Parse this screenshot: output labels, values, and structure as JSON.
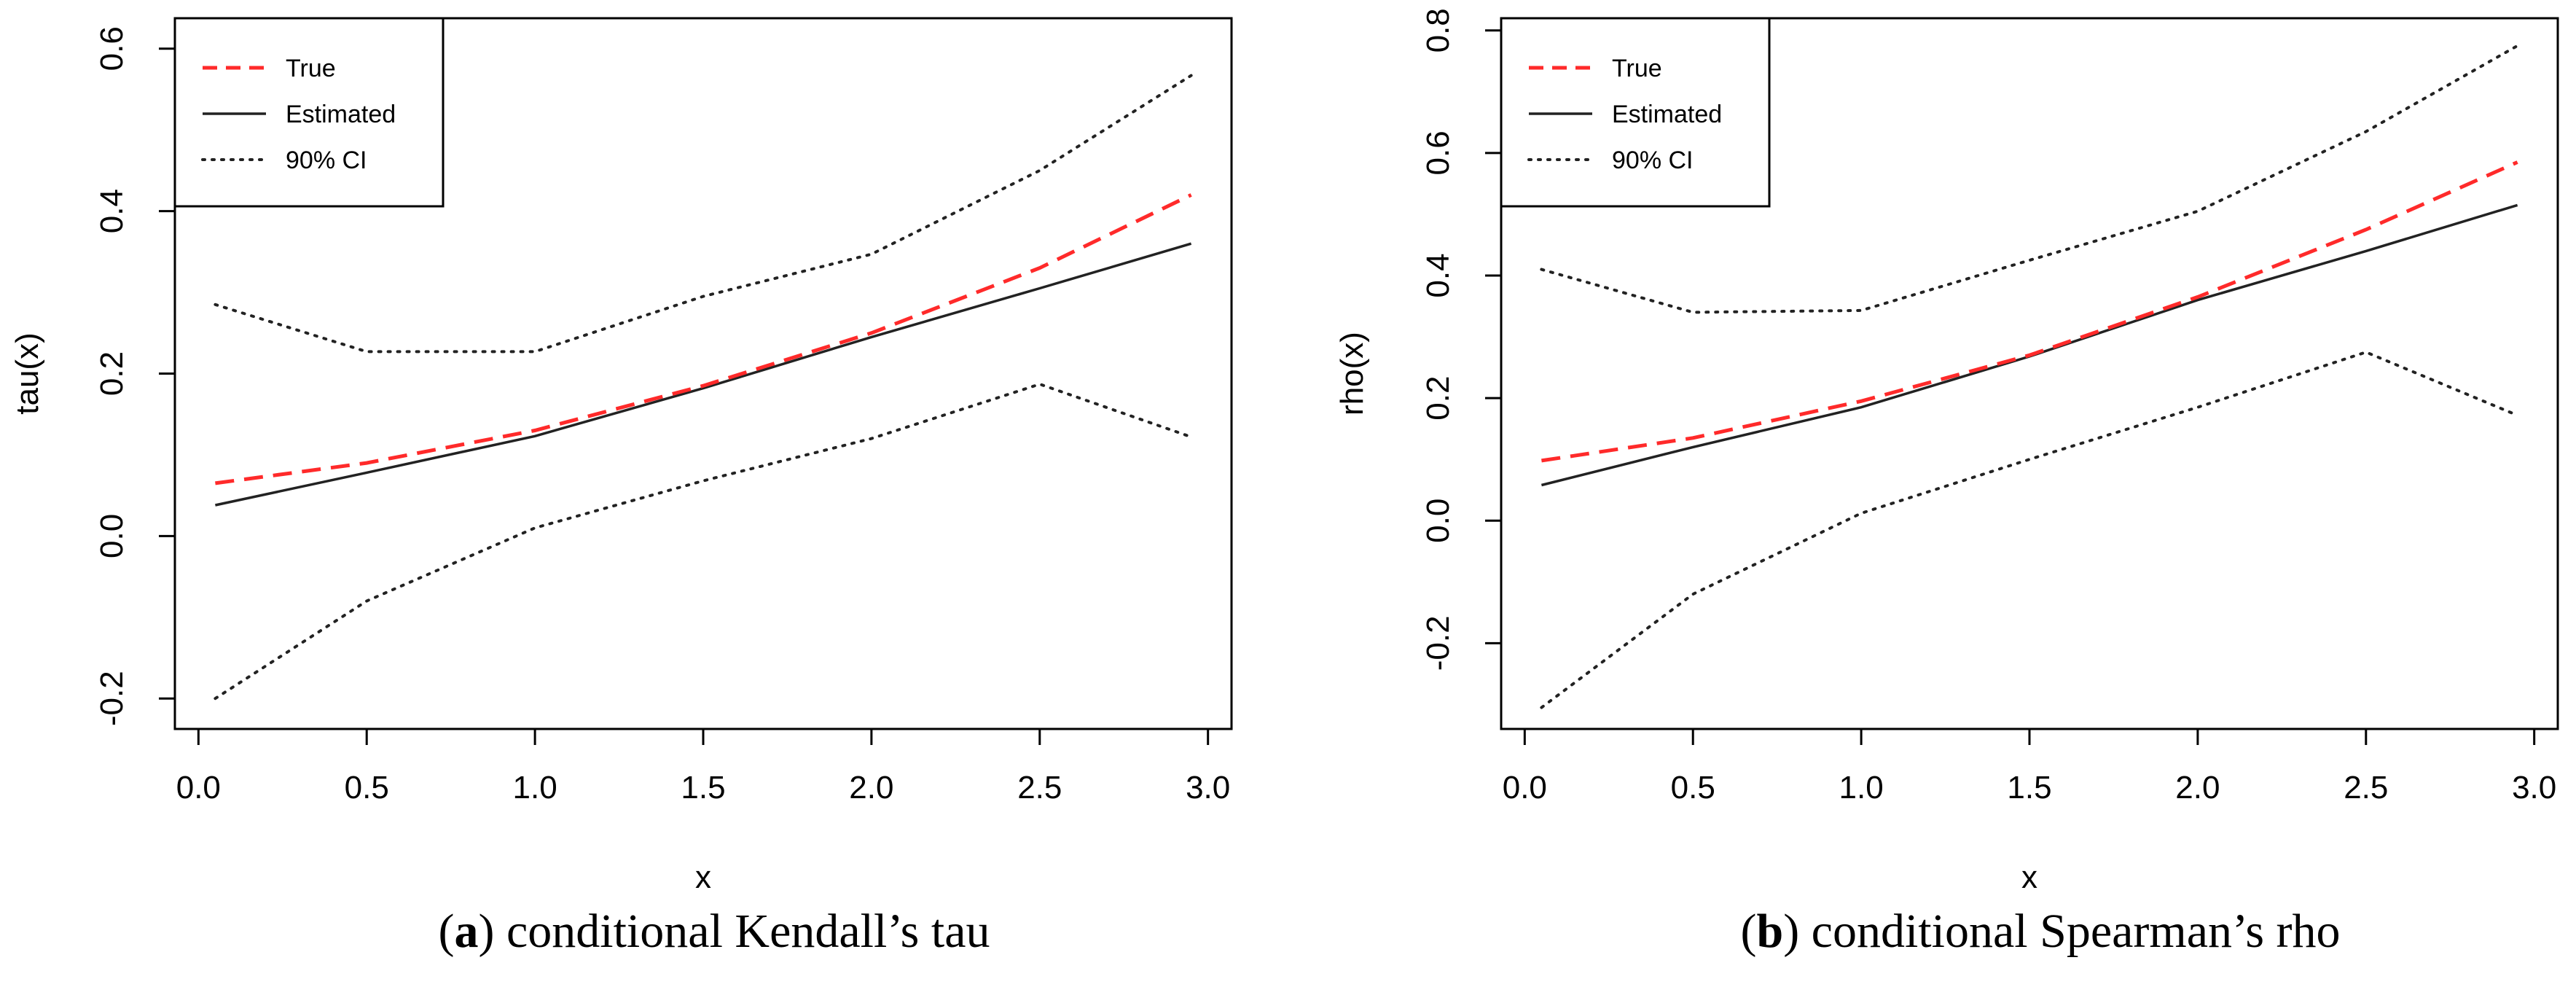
{
  "figure": {
    "panels": [
      {
        "caption_letter": "a",
        "caption_text": "conditional Kendall’s tau"
      },
      {
        "caption_letter": "b",
        "caption_text": "conditional Spearman’s rho"
      }
    ]
  },
  "chart_data": [
    {
      "type": "line",
      "title": "",
      "xlabel": "x",
      "ylabel": "tau(x)",
      "xlim": [
        0.0,
        3.0
      ],
      "ylim": [
        -0.2,
        0.6
      ],
      "xticks": [
        0.0,
        0.5,
        1.0,
        1.5,
        2.0,
        2.5,
        3.0
      ],
      "xtick_labels": [
        "0.0",
        "0.5",
        "1.0",
        "1.5",
        "2.0",
        "2.5",
        "3.0"
      ],
      "yticks": [
        -0.2,
        0.0,
        0.2,
        0.4,
        0.6
      ],
      "ytick_labels": [
        "-0.2",
        "0.0",
        "0.2",
        "0.4",
        "0.6"
      ],
      "legend_position": "top-left",
      "series": [
        {
          "name": "True",
          "style": "dashed",
          "color": "#ff2a2a",
          "x": [
            0.05,
            0.5,
            1.0,
            1.5,
            2.0,
            2.5,
            2.95
          ],
          "values": [
            0.065,
            0.09,
            0.13,
            0.185,
            0.25,
            0.33,
            0.42
          ]
        },
        {
          "name": "Estimated",
          "style": "solid",
          "color": "#222222",
          "x": [
            0.05,
            0.5,
            1.0,
            1.5,
            2.0,
            2.5,
            2.95
          ],
          "values": [
            0.038,
            0.078,
            0.123,
            0.182,
            0.245,
            0.305,
            0.36
          ]
        },
        {
          "name": "90% CI",
          "style": "dotted",
          "color": "#222222",
          "x": [
            0.05,
            0.5,
            1.0,
            1.5,
            2.0,
            2.5,
            2.95
          ],
          "values": [
            0.285,
            0.227,
            0.227,
            0.295,
            0.347,
            0.45,
            0.567
          ]
        },
        {
          "name": "90% CI (lower)",
          "style": "dotted",
          "color": "#222222",
          "legend": false,
          "x": [
            0.05,
            0.5,
            1.0,
            1.5,
            2.0,
            2.5,
            2.95
          ],
          "values": [
            -0.2,
            -0.08,
            0.01,
            0.068,
            0.12,
            0.187,
            0.122
          ]
        }
      ]
    },
    {
      "type": "line",
      "title": "",
      "xlabel": "x",
      "ylabel": "rho(x)",
      "xlim": [
        0.0,
        3.0
      ],
      "ylim": [
        -0.3,
        0.8
      ],
      "xticks": [
        0.0,
        0.5,
        1.0,
        1.5,
        2.0,
        2.5,
        3.0
      ],
      "xtick_labels": [
        "0.0",
        "0.5",
        "1.0",
        "1.5",
        "2.0",
        "2.5",
        "3.0"
      ],
      "yticks": [
        -0.2,
        0.0,
        0.2,
        0.4,
        0.6,
        0.8
      ],
      "ytick_labels": [
        "-0.2",
        "0.0",
        "0.2",
        "0.4",
        "0.6",
        "0.8"
      ],
      "legend_position": "top-left",
      "series": [
        {
          "name": "True",
          "style": "dashed",
          "color": "#ff2a2a",
          "x": [
            0.05,
            0.5,
            1.0,
            1.5,
            2.0,
            2.5,
            2.95
          ],
          "values": [
            0.098,
            0.135,
            0.195,
            0.27,
            0.365,
            0.475,
            0.585
          ]
        },
        {
          "name": "Estimated",
          "style": "solid",
          "color": "#222222",
          "x": [
            0.05,
            0.5,
            1.0,
            1.5,
            2.0,
            2.5,
            2.95
          ],
          "values": [
            0.058,
            0.12,
            0.185,
            0.268,
            0.36,
            0.44,
            0.515
          ]
        },
        {
          "name": "90% CI",
          "style": "dotted",
          "color": "#222222",
          "x": [
            0.05,
            0.5,
            1.0,
            1.5,
            2.0,
            2.5,
            2.95
          ],
          "values": [
            0.41,
            0.34,
            0.343,
            0.425,
            0.505,
            0.635,
            0.775
          ]
        },
        {
          "name": "90% CI (lower)",
          "style": "dotted",
          "color": "#222222",
          "legend": false,
          "x": [
            0.05,
            0.5,
            1.0,
            1.5,
            2.0,
            2.5,
            2.95
          ],
          "values": [
            -0.305,
            -0.12,
            0.012,
            0.1,
            0.185,
            0.275,
            0.172
          ]
        }
      ]
    }
  ]
}
